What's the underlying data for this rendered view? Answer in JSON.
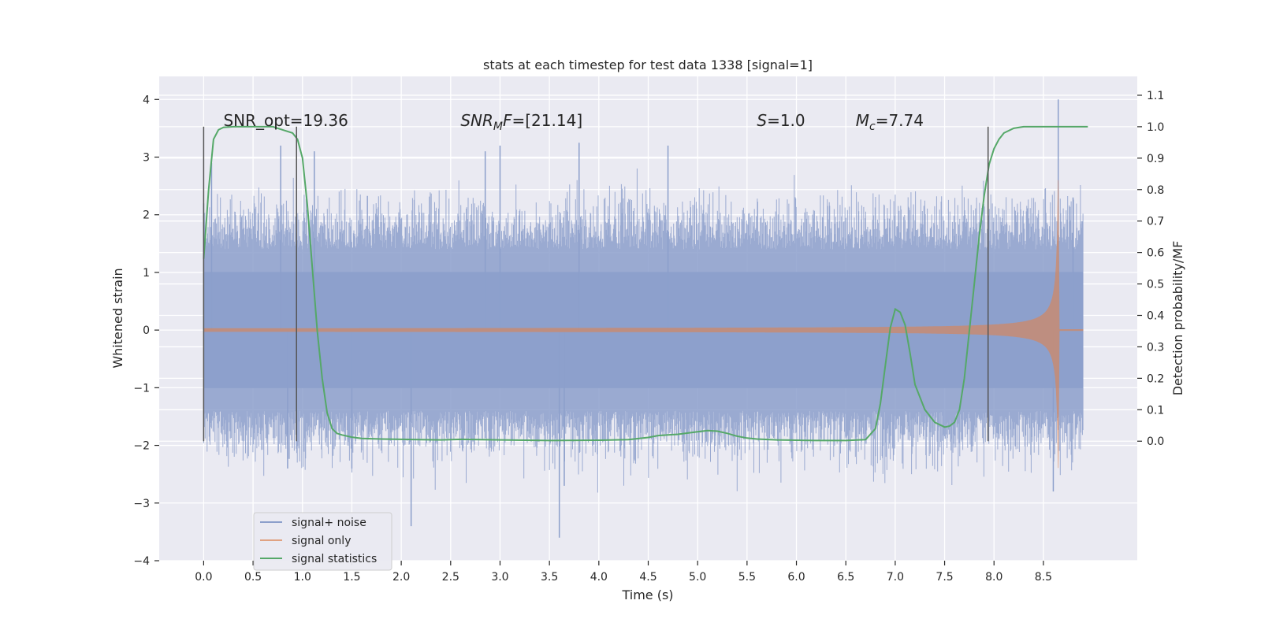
{
  "chart_data": {
    "type": "line",
    "title": "stats at each timestep for test data 1338 [signal=1]",
    "xlabel": "Time (s)",
    "ylabel": "Whitened strain",
    "ylabel_right": "Detection probability/MF",
    "xlim": [
      -0.45,
      9.45
    ],
    "ylim": [
      -4.0,
      4.4
    ],
    "ylim_right": [
      -0.38,
      1.16
    ],
    "x_ticks": [
      "0.0",
      "0.5",
      "1.0",
      "1.5",
      "2.0",
      "2.5",
      "3.0",
      "3.5",
      "4.0",
      "4.5",
      "5.0",
      "5.5",
      "6.0",
      "6.5",
      "7.0",
      "7.5",
      "8.0",
      "8.5"
    ],
    "x_tick_values": [
      0.0,
      0.5,
      1.0,
      1.5,
      2.0,
      2.5,
      3.0,
      3.5,
      4.0,
      4.5,
      5.0,
      5.5,
      6.0,
      6.5,
      7.0,
      7.5,
      8.0,
      8.5
    ],
    "y_ticks": [
      "−4",
      "−3",
      "−2",
      "−1",
      "0",
      "1",
      "2",
      "3",
      "4"
    ],
    "y_tick_values": [
      -4,
      -3,
      -2,
      -1,
      0,
      1,
      2,
      3,
      4
    ],
    "y_right_ticks": [
      "0.0",
      "0.1",
      "0.2",
      "0.3",
      "0.4",
      "0.5",
      "0.6",
      "0.7",
      "0.8",
      "0.9",
      "1.0",
      "1.1"
    ],
    "y_right_tick_values": [
      0.0,
      0.1,
      0.2,
      0.3,
      0.4,
      0.5,
      0.6,
      0.7,
      0.8,
      0.9,
      1.0,
      1.1
    ],
    "noise": {
      "x_range": [
        0.0,
        8.9
      ],
      "envelope": 1.4,
      "spikes": [
        {
          "x": 0.0,
          "y": 2.2
        },
        {
          "x": 0.08,
          "y": 2.9
        },
        {
          "x": 0.78,
          "y": 3.2
        },
        {
          "x": 0.85,
          "y": -2.4
        },
        {
          "x": 1.12,
          "y": 3.1
        },
        {
          "x": 1.5,
          "y": -2.4
        },
        {
          "x": 2.1,
          "y": -3.4
        },
        {
          "x": 2.85,
          "y": 3.1
        },
        {
          "x": 3.0,
          "y": 3.2
        },
        {
          "x": 3.6,
          "y": -3.6
        },
        {
          "x": 3.65,
          "y": -2.7
        },
        {
          "x": 3.8,
          "y": 3.25
        },
        {
          "x": 4.7,
          "y": 3.2
        },
        {
          "x": 8.6,
          "y": -2.8
        },
        {
          "x": 8.65,
          "y": 4.0
        },
        {
          "x": 8.8,
          "y": 2.3
        }
      ]
    },
    "chirp": {
      "t_merger": 8.65,
      "amp_min": 0.02,
      "amp_max": 2.6
    },
    "series": [
      {
        "name": "signal+ noise",
        "color": "#8c9fcb",
        "axis": "left"
      },
      {
        "name": "signal only",
        "color": "#dd8452",
        "axis": "left"
      },
      {
        "name": "signal statistics",
        "color": "#55a868",
        "axis": "right",
        "x": [
          0.0,
          0.05,
          0.1,
          0.15,
          0.2,
          0.3,
          0.4,
          0.5,
          0.6,
          0.7,
          0.8,
          0.9,
          0.95,
          1.0,
          1.05,
          1.1,
          1.15,
          1.2,
          1.25,
          1.3,
          1.35,
          1.4,
          1.5,
          1.6,
          1.8,
          2.0,
          2.2,
          2.4,
          2.6,
          2.8,
          3.0,
          3.5,
          4.0,
          4.3,
          4.5,
          4.6,
          4.7,
          4.8,
          4.9,
          5.0,
          5.1,
          5.2,
          5.3,
          5.4,
          5.5,
          5.6,
          5.8,
          6.0,
          6.2,
          6.5,
          6.7,
          6.8,
          6.85,
          6.9,
          6.95,
          7.0,
          7.05,
          7.1,
          7.15,
          7.2,
          7.3,
          7.4,
          7.5,
          7.55,
          7.6,
          7.65,
          7.7,
          7.75,
          7.8,
          7.85,
          7.9,
          7.95,
          8.0,
          8.05,
          8.1,
          8.2,
          8.3,
          8.4,
          8.6,
          8.8,
          8.95
        ],
        "y": [
          0.58,
          0.8,
          0.96,
          0.99,
          0.998,
          1.0,
          1.0,
          1.0,
          1.0,
          1.0,
          0.99,
          0.98,
          0.96,
          0.9,
          0.75,
          0.55,
          0.35,
          0.2,
          0.09,
          0.04,
          0.025,
          0.02,
          0.013,
          0.009,
          0.007,
          0.006,
          0.005,
          0.004,
          0.006,
          0.005,
          0.004,
          0.002,
          0.003,
          0.005,
          0.012,
          0.018,
          0.02,
          0.022,
          0.026,
          0.03,
          0.034,
          0.032,
          0.025,
          0.016,
          0.01,
          0.007,
          0.004,
          0.003,
          0.002,
          0.002,
          0.005,
          0.04,
          0.12,
          0.24,
          0.36,
          0.42,
          0.41,
          0.37,
          0.28,
          0.18,
          0.1,
          0.06,
          0.045,
          0.048,
          0.06,
          0.1,
          0.2,
          0.35,
          0.5,
          0.65,
          0.78,
          0.88,
          0.93,
          0.96,
          0.98,
          0.995,
          1.0,
          1.0,
          1.0,
          1.0,
          1.0
        ]
      }
    ],
    "vlines": [
      {
        "x": 0.0,
        "y_right": [
          0.0,
          1.0
        ]
      },
      {
        "x": 0.94,
        "y_right": [
          0.0,
          1.0
        ]
      },
      {
        "x": 7.94,
        "y_right": [
          0.0,
          1.0
        ]
      }
    ],
    "annotations": [
      {
        "x": 0.2,
        "text": "SNR_opt=19.36"
      },
      {
        "x": 2.6,
        "text_parts": [
          {
            "t": "SNR",
            "style": "italic"
          },
          {
            "t": "M",
            "style": "italic-sub"
          },
          {
            "t": "F",
            "style": "italic"
          },
          {
            "t": "=[21.14]",
            "style": "normal"
          }
        ]
      },
      {
        "x": 5.6,
        "text_parts": [
          {
            "t": "S",
            "style": "italic"
          },
          {
            "t": "=1.0",
            "style": "normal"
          }
        ]
      },
      {
        "x": 6.6,
        "text_parts": [
          {
            "t": "M",
            "style": "italic"
          },
          {
            "t": "c",
            "style": "italic-sub"
          },
          {
            "t": "=7.74",
            "style": "normal"
          }
        ]
      }
    ],
    "annotation_y_right": 1.0,
    "legend": {
      "placement": "lower-left",
      "entries": [
        {
          "label": "signal+ noise",
          "color": "#8c9fcb"
        },
        {
          "label": "signal only",
          "color": "#dd8452"
        },
        {
          "label": "signal statistics",
          "color": "#55a868"
        }
      ]
    },
    "style": {
      "axes_bg": "#eaeaf2",
      "grid": "#ffffff",
      "text": "#262626",
      "vline": "#555555"
    }
  }
}
